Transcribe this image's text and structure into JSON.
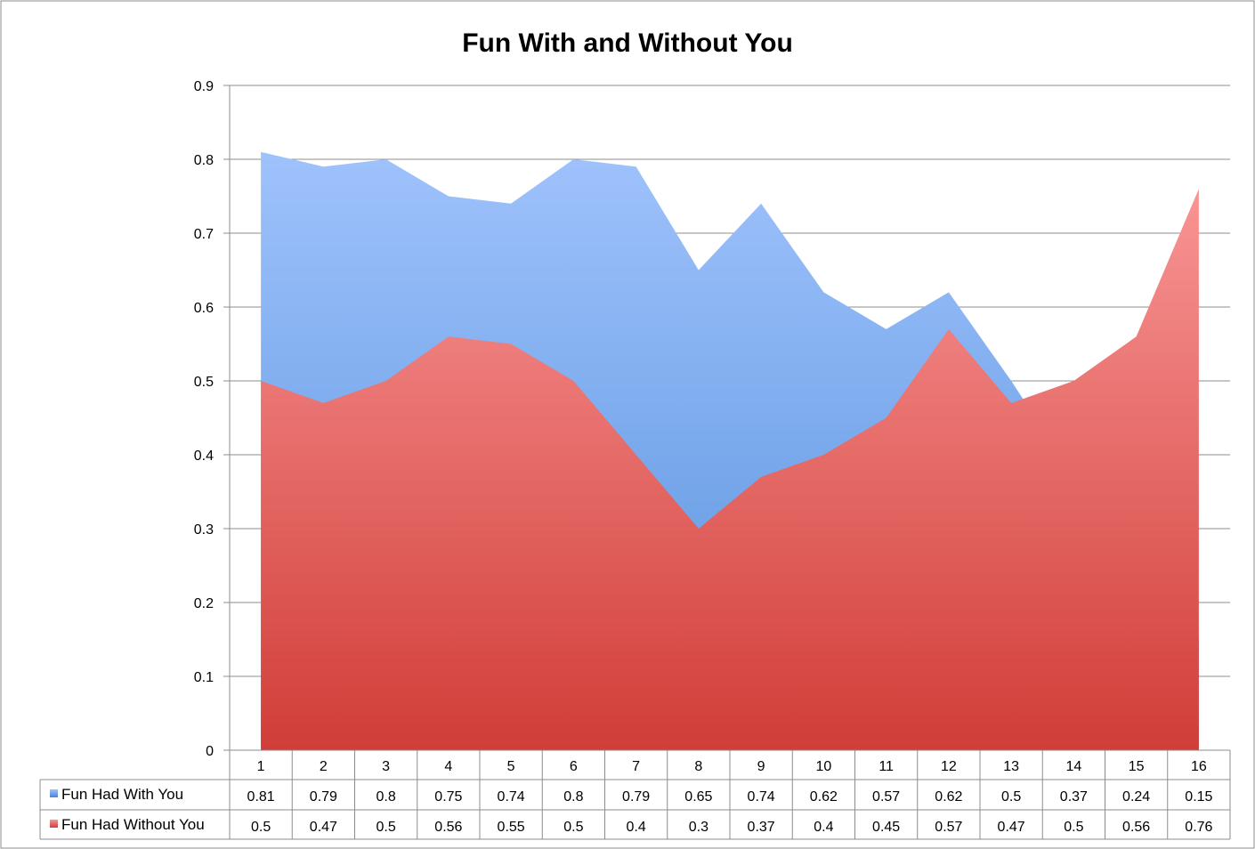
{
  "chart_data": {
    "type": "area",
    "title": "Fun With and Without You",
    "categories": [
      "1",
      "2",
      "3",
      "4",
      "5",
      "6",
      "7",
      "8",
      "9",
      "10",
      "11",
      "12",
      "13",
      "14",
      "15",
      "16"
    ],
    "ylim": [
      0,
      0.9
    ],
    "yticks": [
      0,
      0.1,
      0.2,
      0.3,
      0.4,
      0.5,
      0.6,
      0.7,
      0.8,
      0.9
    ],
    "grid": true,
    "legend_placement": "data table",
    "series": [
      {
        "name": "Fun Had With You",
        "color": "#5b8fdc",
        "values": [
          0.81,
          0.79,
          0.8,
          0.75,
          0.74,
          0.8,
          0.79,
          0.65,
          0.74,
          0.62,
          0.57,
          0.62,
          0.5,
          0.37,
          0.24,
          0.15
        ]
      },
      {
        "name": "Fun Had Without You",
        "color": "#e0514d",
        "values": [
          0.5,
          0.47,
          0.5,
          0.56,
          0.55,
          0.5,
          0.4,
          0.3,
          0.37,
          0.4,
          0.45,
          0.57,
          0.47,
          0.5,
          0.56,
          0.76
        ]
      }
    ]
  }
}
